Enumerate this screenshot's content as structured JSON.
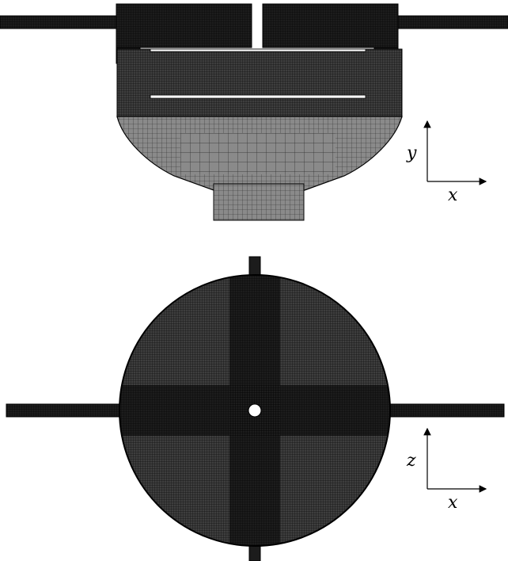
{
  "colors": {
    "background": "#ffffff",
    "dense_mesh": "#1c1c1c",
    "medium_mesh": "#3e3e3e",
    "coarse_mesh": "#8a8a8a",
    "mesh_line": "#000000",
    "outline": "#000000"
  },
  "side_view": {
    "axes": {
      "vertical": "y",
      "horizontal": "x"
    }
  },
  "top_view": {
    "axes": {
      "vertical": "z",
      "horizontal": "x"
    }
  }
}
